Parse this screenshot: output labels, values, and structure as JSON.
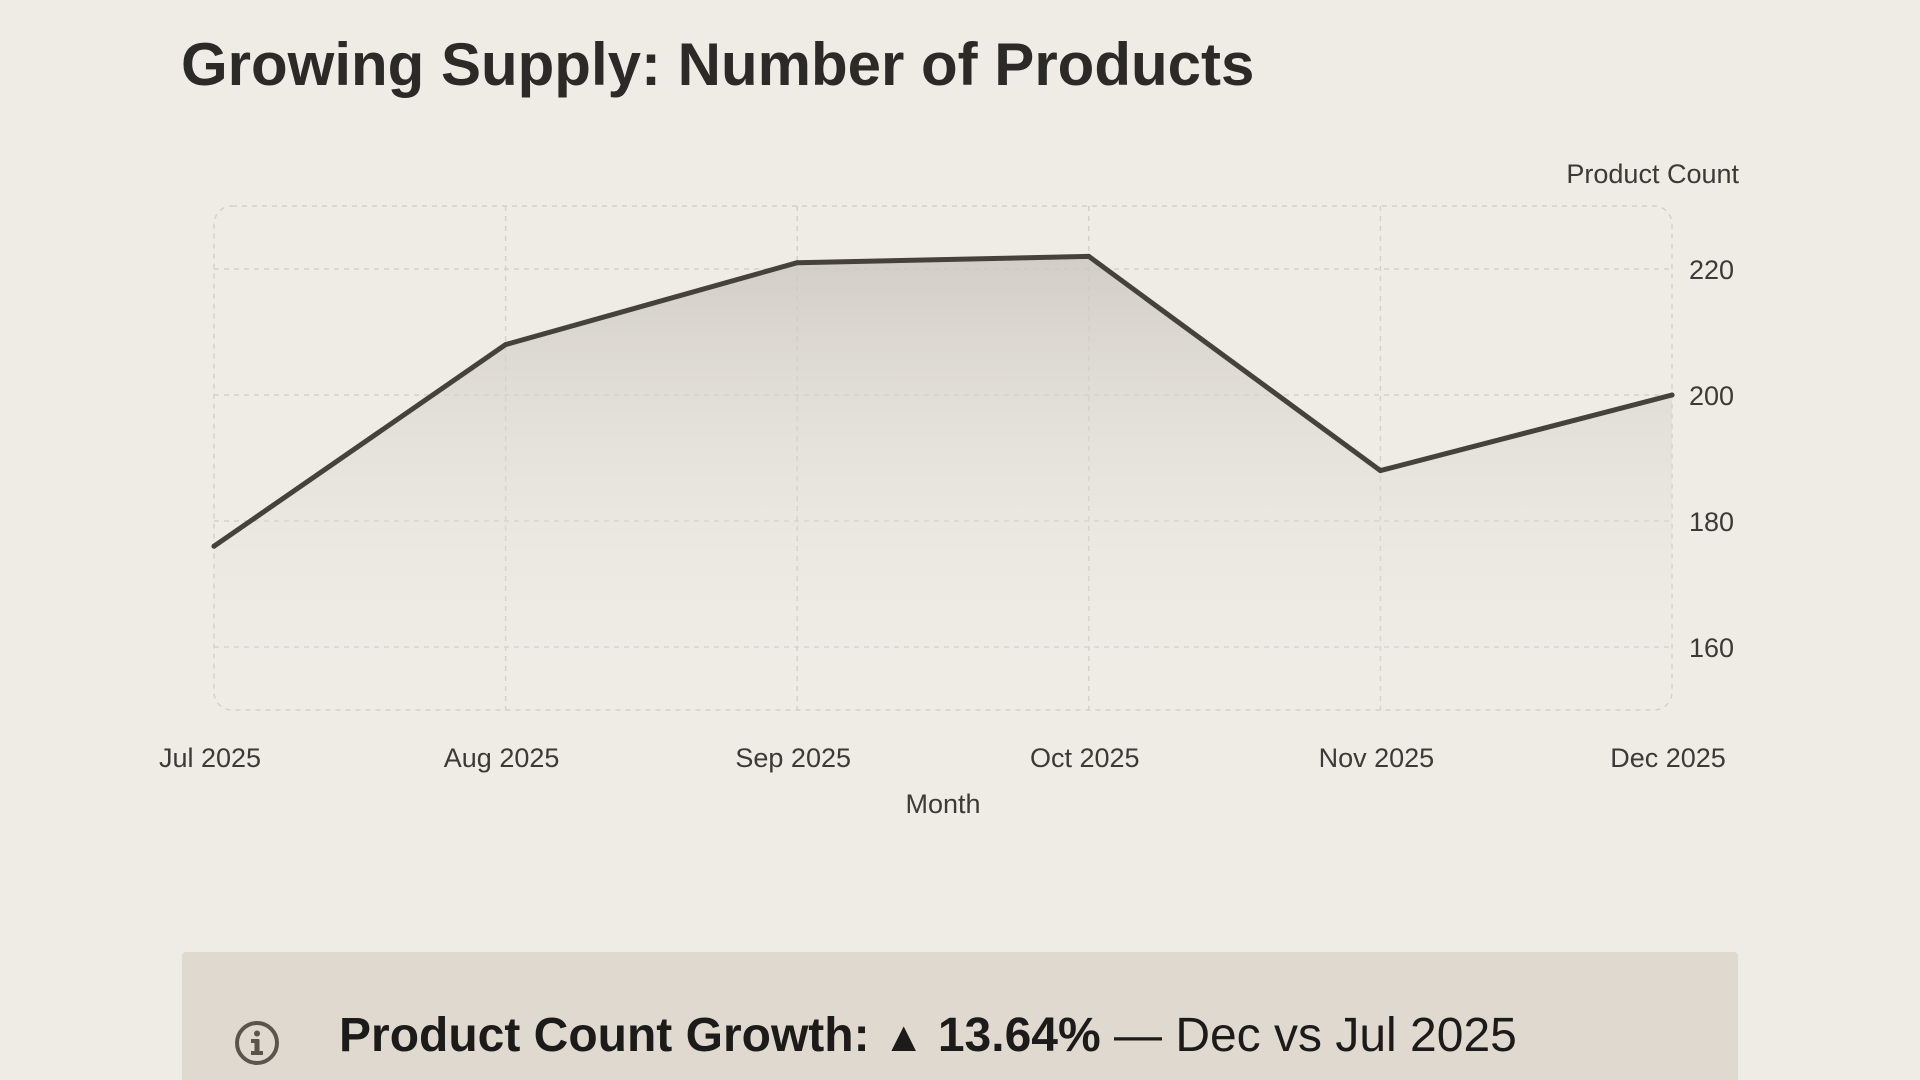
{
  "title": "Growing Supply: Number of Products",
  "chart_data": {
    "type": "area",
    "title": "Growing Supply: Number of Products",
    "xlabel": "Month",
    "ylabel": "Product Count",
    "categories": [
      "Jul 2025",
      "Aug 2025",
      "Sep 2025",
      "Oct 2025",
      "Nov 2025",
      "Dec 2025"
    ],
    "series": [
      {
        "values": [
          176,
          208,
          221,
          222,
          188,
          200
        ]
      }
    ],
    "ylim": [
      150,
      230
    ],
    "yticks": [
      160,
      180,
      200,
      220
    ],
    "yaxis_position": "right",
    "grid": true,
    "legend": "none",
    "colors": {
      "line": "#45423c",
      "grid": "#d5d1c9",
      "fill": "#cfcbc3"
    }
  },
  "callout": {
    "icon": "info-icon",
    "label": "Product Count Growth:",
    "arrow": "▲",
    "value": "13.64%",
    "suffix": "— Dec vs Jul 2025"
  }
}
